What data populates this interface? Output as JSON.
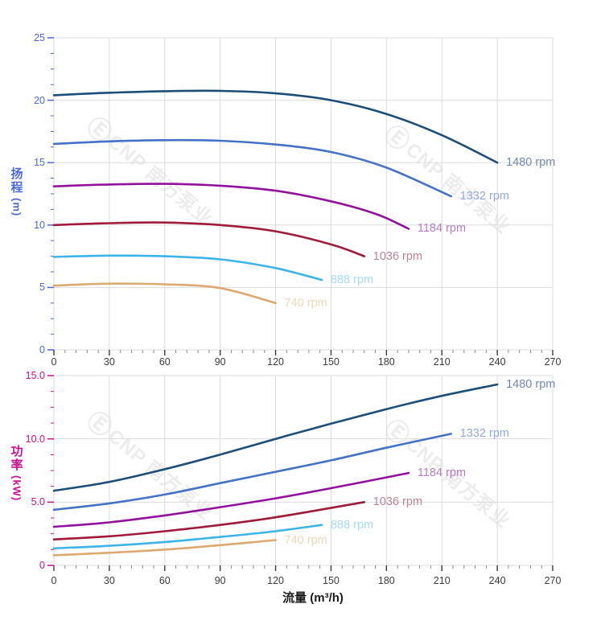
{
  "watermark": {
    "logo": "Ⓔ",
    "text": "CNP 南方泵业",
    "color": "#ececec"
  },
  "chart_data": [
    {
      "type": "line",
      "name": "head-vs-flow",
      "title": "",
      "xlabel": "",
      "ylabel": "扬程 (m)",
      "ylabel_stack": [
        "扬",
        "程"
      ],
      "ylabel_unit": "(m)",
      "xlim": [
        0,
        270
      ],
      "ylim": [
        0,
        25
      ],
      "xticks": [
        0,
        30,
        60,
        90,
        120,
        150,
        180,
        210,
        240,
        270
      ],
      "xtick_labels": [
        "0",
        "30",
        "60",
        "90",
        "120",
        "150",
        "180",
        "210",
        "240",
        "270"
      ],
      "yticks": [
        0,
        5,
        10,
        15,
        20,
        25
      ],
      "ytick_labels": [
        "0",
        "5",
        "10",
        "15",
        "20",
        "25"
      ],
      "x_minor_step": 6,
      "y_minor_step": 1.25,
      "grid": true,
      "legend_position": "end-of-line",
      "axis_color": "#4a67db",
      "grid_color": "#dbdbdb",
      "series": [
        {
          "name": "1480 rpm",
          "color": "#1c4e78",
          "label_color": "#7189af",
          "points": [
            [
              0,
              20.4
            ],
            [
              30,
              20.6
            ],
            [
              60,
              20.72
            ],
            [
              90,
              20.75
            ],
            [
              120,
              20.55
            ],
            [
              150,
              20.0
            ],
            [
              180,
              18.9
            ],
            [
              210,
              17.2
            ],
            [
              240,
              15.0
            ]
          ]
        },
        {
          "name": "1332 rpm",
          "color": "#4472c4",
          "label_color": "#93a9dc",
          "points": [
            [
              0,
              16.5
            ],
            [
              30,
              16.7
            ],
            [
              60,
              16.8
            ],
            [
              90,
              16.75
            ],
            [
              120,
              16.45
            ],
            [
              150,
              15.85
            ],
            [
              180,
              14.6
            ],
            [
              215,
              12.3
            ]
          ]
        },
        {
          "name": "1184 rpm",
          "color": "#92119c",
          "label_color": "#b97bc5",
          "points": [
            [
              0,
              13.1
            ],
            [
              30,
              13.25
            ],
            [
              60,
              13.3
            ],
            [
              90,
              13.15
            ],
            [
              120,
              12.75
            ],
            [
              150,
              11.9
            ],
            [
              175,
              10.85
            ],
            [
              192,
              9.7
            ]
          ]
        },
        {
          "name": "1036 rpm",
          "color": "#9e1b3c",
          "label_color": "#be8494",
          "points": [
            [
              0,
              10.0
            ],
            [
              30,
              10.15
            ],
            [
              60,
              10.2
            ],
            [
              90,
              10.0
            ],
            [
              120,
              9.5
            ],
            [
              150,
              8.45
            ],
            [
              168,
              7.5
            ]
          ]
        },
        {
          "name": "888 rpm",
          "color": "#3cb4e8",
          "label_color": "#a5dcf5",
          "points": [
            [
              0,
              7.45
            ],
            [
              30,
              7.55
            ],
            [
              60,
              7.5
            ],
            [
              90,
              7.25
            ],
            [
              120,
              6.55
            ],
            [
              145,
              5.6
            ]
          ]
        },
        {
          "name": "740 rpm",
          "color": "#dca96f",
          "label_color": "#edd8b2",
          "points": [
            [
              0,
              5.15
            ],
            [
              30,
              5.3
            ],
            [
              60,
              5.25
            ],
            [
              90,
              4.95
            ],
            [
              120,
              3.75
            ]
          ]
        }
      ]
    },
    {
      "type": "line",
      "name": "power-vs-flow",
      "title": "",
      "xlabel": "流量 (m³/h)",
      "ylabel": "功率 (kW)",
      "ylabel_stack": [
        "功",
        "率"
      ],
      "ylabel_unit": "(kW)",
      "xlim": [
        0,
        270
      ],
      "ylim": [
        0,
        15
      ],
      "xticks": [
        0,
        30,
        60,
        90,
        120,
        150,
        180,
        210,
        240,
        270
      ],
      "xtick_labels": [
        "0",
        "30",
        "60",
        "90",
        "120",
        "150",
        "180",
        "210",
        "240",
        "270"
      ],
      "yticks": [
        0,
        5,
        10,
        15
      ],
      "ytick_labels": [
        "0",
        "5.0",
        "10.0",
        "15.0"
      ],
      "x_minor_step": 6,
      "y_minor_step": 1.25,
      "grid": true,
      "legend_position": "end-of-line",
      "axis_color": "#ce0e8e",
      "grid_color": "#dbdbdb",
      "series": [
        {
          "name": "1480 rpm",
          "color": "#1c4e78",
          "label_color": "#7189af",
          "points": [
            [
              0,
              5.9
            ],
            [
              30,
              6.6
            ],
            [
              60,
              7.6
            ],
            [
              90,
              8.75
            ],
            [
              120,
              10.0
            ],
            [
              150,
              11.2
            ],
            [
              180,
              12.35
            ],
            [
              210,
              13.4
            ],
            [
              240,
              14.3
            ]
          ]
        },
        {
          "name": "1332 rpm",
          "color": "#4472c4",
          "label_color": "#93a9dc",
          "points": [
            [
              0,
              4.4
            ],
            [
              30,
              4.9
            ],
            [
              60,
              5.6
            ],
            [
              90,
              6.5
            ],
            [
              120,
              7.4
            ],
            [
              150,
              8.3
            ],
            [
              180,
              9.3
            ],
            [
              215,
              10.4
            ]
          ]
        },
        {
          "name": "1184 rpm",
          "color": "#92119c",
          "label_color": "#b97bc5",
          "points": [
            [
              0,
              3.05
            ],
            [
              30,
              3.4
            ],
            [
              60,
              3.95
            ],
            [
              90,
              4.6
            ],
            [
              120,
              5.3
            ],
            [
              150,
              6.1
            ],
            [
              192,
              7.3
            ]
          ]
        },
        {
          "name": "1036 rpm",
          "color": "#9e1b3c",
          "label_color": "#be8494",
          "points": [
            [
              0,
              2.05
            ],
            [
              30,
              2.3
            ],
            [
              60,
              2.7
            ],
            [
              90,
              3.2
            ],
            [
              120,
              3.8
            ],
            [
              168,
              5.0
            ]
          ]
        },
        {
          "name": "888 rpm",
          "color": "#3cb4e8",
          "label_color": "#a5dcf5",
          "points": [
            [
              0,
              1.35
            ],
            [
              30,
              1.55
            ],
            [
              60,
              1.85
            ],
            [
              90,
              2.25
            ],
            [
              120,
              2.7
            ],
            [
              145,
              3.2
            ]
          ]
        },
        {
          "name": "740 rpm",
          "color": "#dca96f",
          "label_color": "#edd8b2",
          "points": [
            [
              0,
              0.8
            ],
            [
              30,
              1.0
            ],
            [
              60,
              1.25
            ],
            [
              90,
              1.6
            ],
            [
              120,
              2.0
            ]
          ]
        }
      ]
    }
  ]
}
